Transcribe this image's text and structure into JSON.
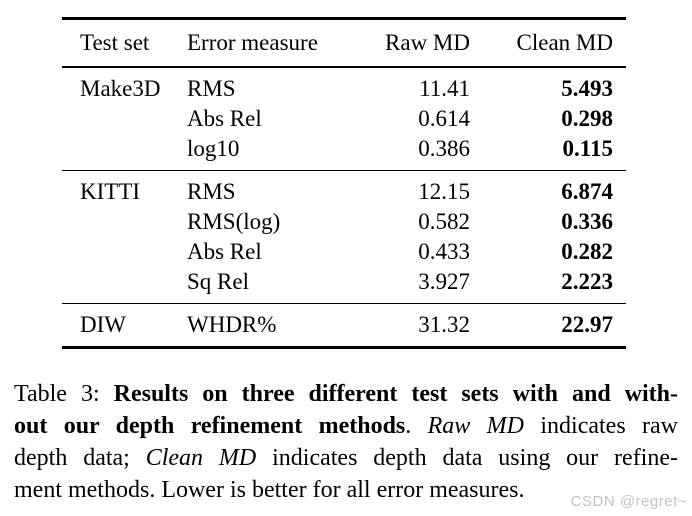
{
  "table": {
    "headers": [
      "Test set",
      "Error measure",
      "Raw MD",
      "Clean MD"
    ],
    "groups": [
      {
        "test_set": "Make3D",
        "rows": [
          {
            "error_measure": "RMS",
            "raw_md": "11.41",
            "clean_md": "5.493"
          },
          {
            "error_measure": "Abs Rel",
            "raw_md": "0.614",
            "clean_md": "0.298"
          },
          {
            "error_measure": "log10",
            "raw_md": "0.386",
            "clean_md": "0.115"
          }
        ]
      },
      {
        "test_set": "KITTI",
        "rows": [
          {
            "error_measure": "RMS",
            "raw_md": "12.15",
            "clean_md": "6.874"
          },
          {
            "error_measure": "RMS(log)",
            "raw_md": "0.582",
            "clean_md": "0.336"
          },
          {
            "error_measure": "Abs Rel",
            "raw_md": "0.433",
            "clean_md": "0.282"
          },
          {
            "error_measure": "Sq Rel",
            "raw_md": "3.927",
            "clean_md": "2.223"
          }
        ]
      },
      {
        "test_set": "DIW",
        "rows": [
          {
            "error_measure": "WHDR%",
            "raw_md": "31.32",
            "clean_md": "22.97"
          }
        ]
      }
    ]
  },
  "caption": {
    "lines": [
      [
        {
          "t": "Table 3: ",
          "s": "plain"
        },
        {
          "t": "Results on three different test sets with and with-",
          "s": "bold"
        }
      ],
      [
        {
          "t": "out our depth refinement methods",
          "s": "bold"
        },
        {
          "t": ". ",
          "s": "plain"
        },
        {
          "t": "Raw MD",
          "s": "italic"
        },
        {
          "t": " indicates raw",
          "s": "plain"
        }
      ],
      [
        {
          "t": "depth data; ",
          "s": "plain"
        },
        {
          "t": "Clean MD",
          "s": "italic"
        },
        {
          "t": " indicates depth data using our refine-",
          "s": "plain"
        }
      ],
      [
        {
          "t": "ment methods. Lower is better for all error measures.",
          "s": "plain"
        }
      ]
    ]
  },
  "watermark": {
    "text": "CSDN @regret~",
    "color": "#c4c3c3"
  }
}
